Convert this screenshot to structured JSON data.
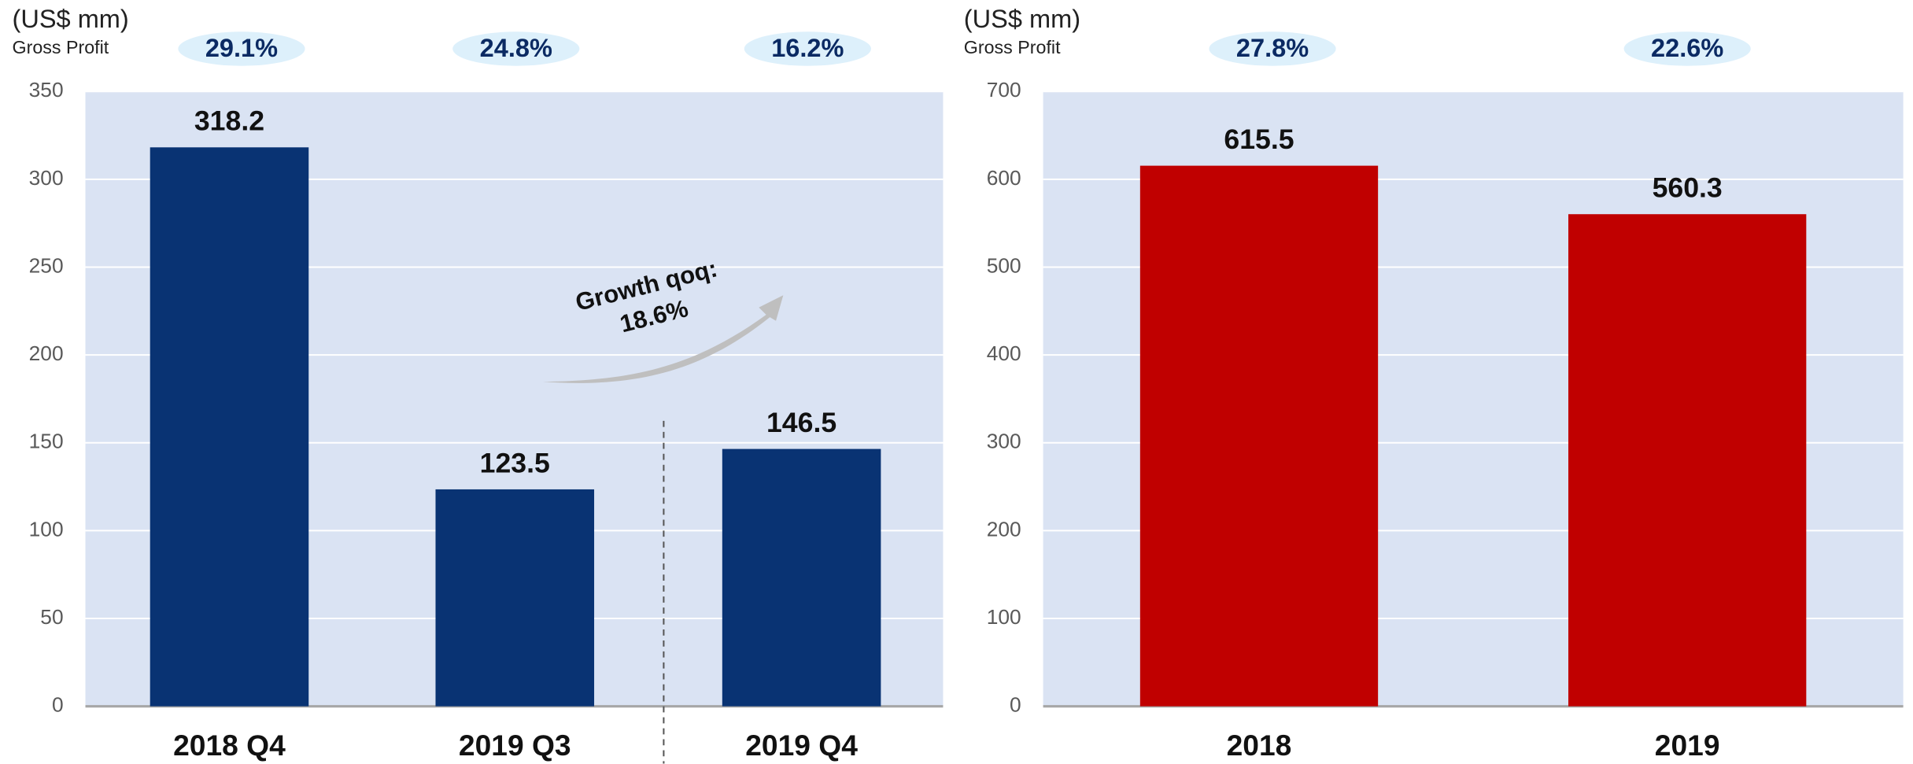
{
  "chart_data": [
    {
      "type": "bar",
      "unit": "(US$ mm)",
      "categories": [
        "2018 Q4",
        "2019 Q3",
        "2019 Q4"
      ],
      "values": [
        318.2,
        123.5,
        146.5
      ],
      "color": "#093373",
      "ylim": [
        0,
        350
      ],
      "yticks": [
        0,
        50,
        100,
        150,
        200,
        250,
        300,
        350
      ],
      "grid": true,
      "gross_margin": {
        "name": "Gross Profit",
        "values": [
          29.1,
          24.8,
          16.2
        ],
        "value_labels": [
          "29.1%",
          "24.8%",
          "16.2%"
        ]
      },
      "annotation": [
        "Growth qoq:",
        "18.6%"
      ]
    },
    {
      "type": "bar",
      "unit": "(US$ mm)",
      "categories": [
        "2018",
        "2019"
      ],
      "values": [
        615.5,
        560.3
      ],
      "color": "#c00000",
      "ylim": [
        0,
        700
      ],
      "yticks": [
        0,
        100,
        200,
        300,
        400,
        500,
        600,
        700
      ],
      "grid": true,
      "gross_margin": {
        "name": "Gross Profit",
        "values": [
          27.8,
          22.6
        ],
        "value_labels": [
          "27.8%",
          "22.6%"
        ]
      }
    }
  ]
}
